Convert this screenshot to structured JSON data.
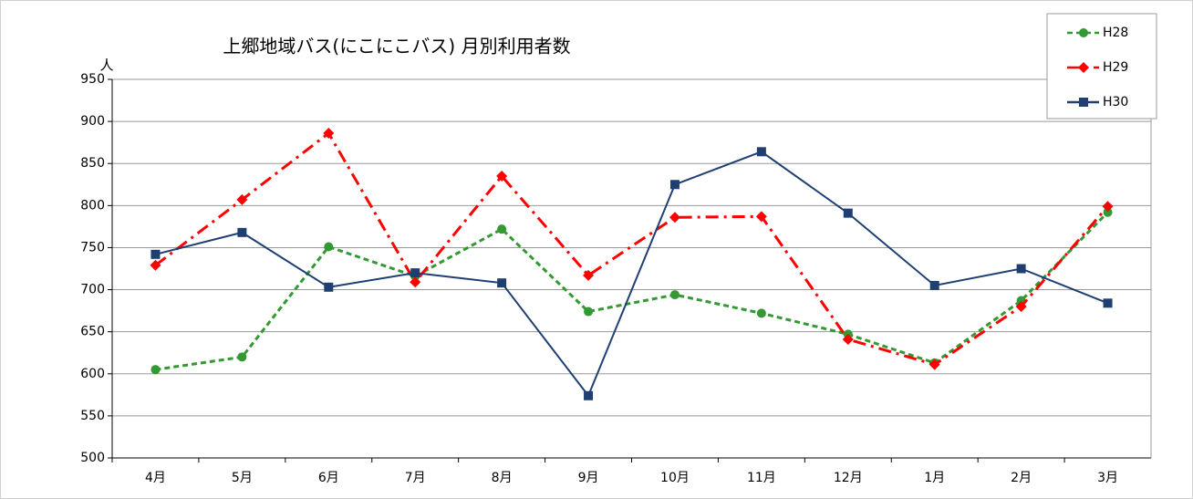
{
  "chart_data": {
    "type": "line",
    "title": "上郷地域バス(にこにこバス) 月別利用者数",
    "y_label": "人",
    "categories": [
      "4月",
      "5月",
      "6月",
      "7月",
      "8月",
      "9月",
      "10月",
      "11月",
      "12月",
      "1月",
      "2月",
      "3月"
    ],
    "series": [
      {
        "name": "H28",
        "color": "#339933",
        "line_style": "dashed",
        "marker": "circle",
        "values": [
          605,
          620,
          751,
          716,
          772,
          674,
          694,
          672,
          647,
          613,
          687,
          792
        ]
      },
      {
        "name": "H29",
        "color": "#ff0000",
        "line_style": "dashdot",
        "marker": "diamond",
        "values": [
          729,
          807,
          886,
          709,
          835,
          717,
          786,
          787,
          641,
          611,
          680,
          799
        ]
      },
      {
        "name": "H30",
        "color": "#1f3f73",
        "line_style": "solid",
        "marker": "square",
        "values": [
          742,
          768,
          703,
          720,
          708,
          574,
          825,
          864,
          791,
          705,
          725,
          684
        ]
      }
    ],
    "ylim": [
      500,
      950
    ],
    "yticks": [
      500,
      550,
      600,
      650,
      700,
      750,
      800,
      850,
      900,
      950
    ],
    "grid": true,
    "legend": "top-right"
  }
}
